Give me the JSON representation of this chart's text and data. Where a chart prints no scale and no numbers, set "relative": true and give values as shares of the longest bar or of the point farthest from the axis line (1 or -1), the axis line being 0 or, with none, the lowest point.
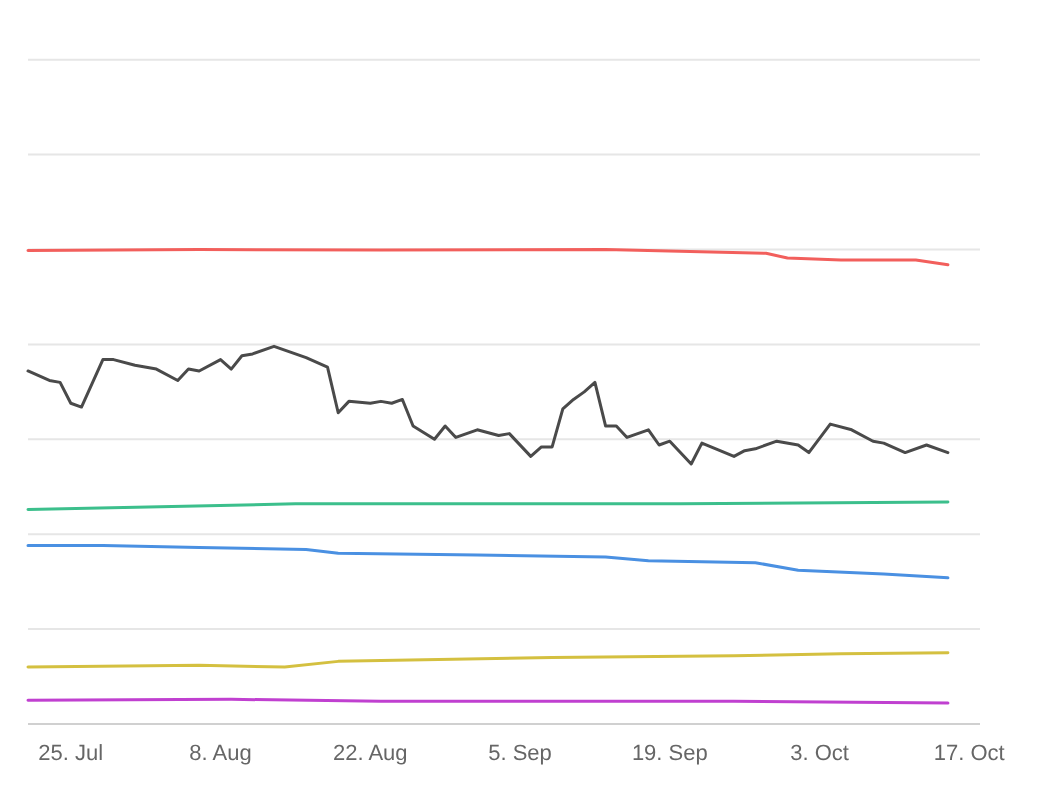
{
  "chart_data": {
    "type": "line",
    "relative": true,
    "grid": "y",
    "xlim": [
      "--07-21",
      "--10-18"
    ],
    "xticks": [
      {
        "value": "--07-25",
        "label": "25. Jul"
      },
      {
        "value": "--08-08",
        "label": "8. Aug"
      },
      {
        "value": "--08-22",
        "label": "22. Aug"
      },
      {
        "value": "--09-05",
        "label": "5. Sep"
      },
      {
        "value": "--09-19",
        "label": "19. Sep"
      },
      {
        "value": "--10-03",
        "label": "3. Oct"
      },
      {
        "value": "--10-17",
        "label": "17. Oct"
      }
    ],
    "series": [
      {
        "color": "#f25f5c",
        "x": [
          "--07-21",
          "--08-06",
          "--08-23",
          "--09-13",
          "--09-28",
          "--09-30",
          "--10-05",
          "--10-12",
          "--10-15"
        ],
        "values": [
          0.998,
          1.0,
          0.999,
          1.0,
          0.992,
          0.982,
          0.978,
          0.978,
          0.968
        ]
      },
      {
        "color": "#4a4a4a",
        "x": [
          "--07-21",
          "--07-23",
          "--07-24",
          "--07-25",
          "--07-26",
          "--07-28",
          "--07-29",
          "--07-31",
          "--08-02",
          "--08-04",
          "--08-05",
          "--08-06",
          "--08-08",
          "--08-09",
          "--08-10",
          "--08-11",
          "--08-13",
          "--08-14",
          "--08-16",
          "--08-18",
          "--08-19",
          "--08-20",
          "--08-22",
          "--08-23",
          "--08-24",
          "--08-25",
          "--08-26",
          "--08-28",
          "--08-29",
          "--08-30",
          "--09-01",
          "--09-03",
          "--09-04",
          "--09-06",
          "--09-07",
          "--09-08",
          "--09-09",
          "--09-10",
          "--09-11",
          "--09-12",
          "--09-13",
          "--09-14",
          "--09-15",
          "--09-17",
          "--09-18",
          "--09-19",
          "--09-21",
          "--09-22",
          "--09-25",
          "--09-26",
          "--09-27",
          "--09-29",
          "--10-01",
          "--10-02",
          "--10-04",
          "--10-06",
          "--10-08",
          "--10-09",
          "--10-11",
          "--10-13",
          "--10-15"
        ],
        "values": [
          0.744,
          0.724,
          0.72,
          0.676,
          0.668,
          0.768,
          0.768,
          0.756,
          0.748,
          0.724,
          0.748,
          0.744,
          0.768,
          0.748,
          0.776,
          0.78,
          0.796,
          0.788,
          0.772,
          0.752,
          0.656,
          0.68,
          0.676,
          0.68,
          0.676,
          0.684,
          0.628,
          0.6,
          0.628,
          0.604,
          0.62,
          0.608,
          0.612,
          0.564,
          0.584,
          0.584,
          0.664,
          0.684,
          0.7,
          0.72,
          0.628,
          0.628,
          0.604,
          0.62,
          0.588,
          0.596,
          0.548,
          0.592,
          0.564,
          0.576,
          0.58,
          0.596,
          0.588,
          0.572,
          0.632,
          0.62,
          0.596,
          0.592,
          0.572,
          0.588,
          0.572
        ]
      },
      {
        "color": "#3cbf8c",
        "x": [
          "--07-21",
          "--08-15",
          "--09-20",
          "--10-15"
        ],
        "values": [
          0.452,
          0.464,
          0.464,
          0.468
        ]
      },
      {
        "color": "#4a90e2",
        "x": [
          "--07-21",
          "--07-28",
          "--08-06",
          "--08-16",
          "--08-19",
          "--09-01",
          "--09-13",
          "--09-17",
          "--09-27",
          "--10-01",
          "--10-09",
          "--10-15"
        ],
        "values": [
          0.376,
          0.376,
          0.372,
          0.368,
          0.36,
          0.356,
          0.352,
          0.344,
          0.34,
          0.324,
          0.316,
          0.308
        ]
      },
      {
        "color": "#d4c040",
        "x": [
          "--07-21",
          "--08-06",
          "--08-14",
          "--08-19",
          "--09-08",
          "--09-25",
          "--10-05",
          "--10-15"
        ],
        "values": [
          0.12,
          0.124,
          0.12,
          0.132,
          0.14,
          0.144,
          0.148,
          0.15
        ]
      },
      {
        "color": "#c040d0",
        "x": [
          "--07-21",
          "--08-09",
          "--08-23",
          "--09-25",
          "--10-15"
        ],
        "values": [
          0.05,
          0.052,
          0.048,
          0.048,
          0.044
        ]
      }
    ]
  }
}
